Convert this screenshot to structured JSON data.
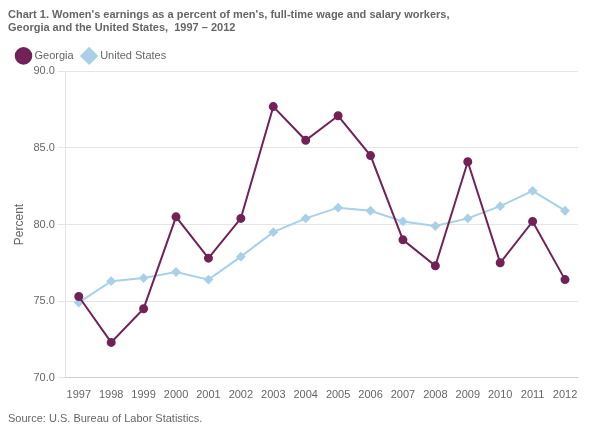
{
  "chart_data": {
    "type": "line",
    "title": [
      "Chart 1. Women's earnings as a percent of men's, full-time wage and salary workers,",
      "Georgia and the United States,  1997 – 2012"
    ],
    "y_label": "Percent",
    "annotations": [
      "Source: U.S. Bureau of Labor Statistics."
    ],
    "x": [
      1997,
      1998,
      1999,
      2000,
      2001,
      2002,
      2003,
      2004,
      2005,
      2006,
      2007,
      2008,
      2009,
      2010,
      2011,
      2012
    ],
    "series": [
      {
        "name": "Georgia",
        "color": "#722257",
        "marker": "circle",
        "values": [
          75.3,
          72.3,
          74.5,
          80.5,
          77.8,
          80.4,
          87.7,
          85.5,
          87.1,
          84.5,
          79.0,
          77.3,
          84.1,
          77.5,
          80.2,
          76.4
        ]
      },
      {
        "name": "United States",
        "color": "#a8d0e8",
        "marker": "diamond",
        "values": [
          74.9,
          76.3,
          76.5,
          76.9,
          76.4,
          77.9,
          79.5,
          80.4,
          81.1,
          80.9,
          80.2,
          79.9,
          80.4,
          81.2,
          82.2,
          80.9
        ]
      }
    ],
    "xlim": [
      1996.6,
      2012.4
    ],
    "xticks": [
      1997,
      1998,
      1999,
      2000,
      2001,
      2002,
      2003,
      2004,
      2005,
      2006,
      2007,
      2008,
      2009,
      2010,
      2011,
      2012
    ],
    "ylim": [
      70.0,
      90.0
    ],
    "yticks": [
      {
        "value": 70,
        "label": "70.0"
      },
      {
        "value": 75,
        "label": "75.0"
      },
      {
        "value": 80,
        "label": "80.0"
      },
      {
        "value": 85,
        "label": "85.0"
      },
      {
        "value": 90,
        "label": "90.0"
      }
    ],
    "grid": "y",
    "legend": "upper left"
  }
}
